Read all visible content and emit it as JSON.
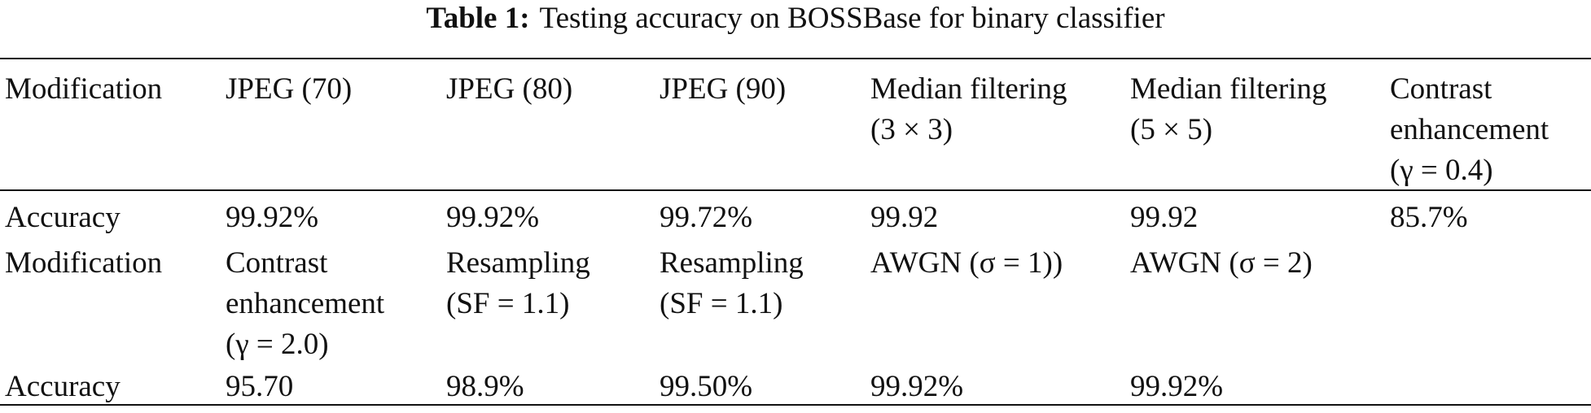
{
  "title": {
    "label": "Table 1:",
    "text": "Testing accuracy on BOSSBase for binary classifier"
  },
  "table": {
    "rows": [
      [
        [
          "Modification"
        ],
        [
          "JPEG (70)"
        ],
        [
          "JPEG (80)"
        ],
        [
          "JPEG (90)"
        ],
        [
          "Median filtering",
          "(3 × 3)"
        ],
        [
          "Median filtering",
          "(5 × 5)"
        ],
        [
          "Contrast",
          "enhancement",
          "(γ = 0.4)"
        ]
      ],
      [
        [
          "Accuracy"
        ],
        [
          "99.92%"
        ],
        [
          "99.92%"
        ],
        [
          "99.72%"
        ],
        [
          "99.92"
        ],
        [
          "99.92"
        ],
        [
          "85.7%"
        ]
      ],
      [
        [
          "Modification"
        ],
        [
          "Contrast",
          "enhancement",
          "(γ = 2.0)"
        ],
        [
          "Resampling",
          "(SF = 1.1)"
        ],
        [
          "Resampling",
          "(SF = 1.1)"
        ],
        [
          "AWGN (σ = 1))"
        ],
        [
          "AWGN (σ = 2)"
        ]
      ],
      [
        [
          "Accuracy"
        ],
        [
          "95.70"
        ],
        [
          "98.9%"
        ],
        [
          "99.50%"
        ],
        [
          "99.92%"
        ],
        [
          "99.92%"
        ]
      ]
    ]
  }
}
